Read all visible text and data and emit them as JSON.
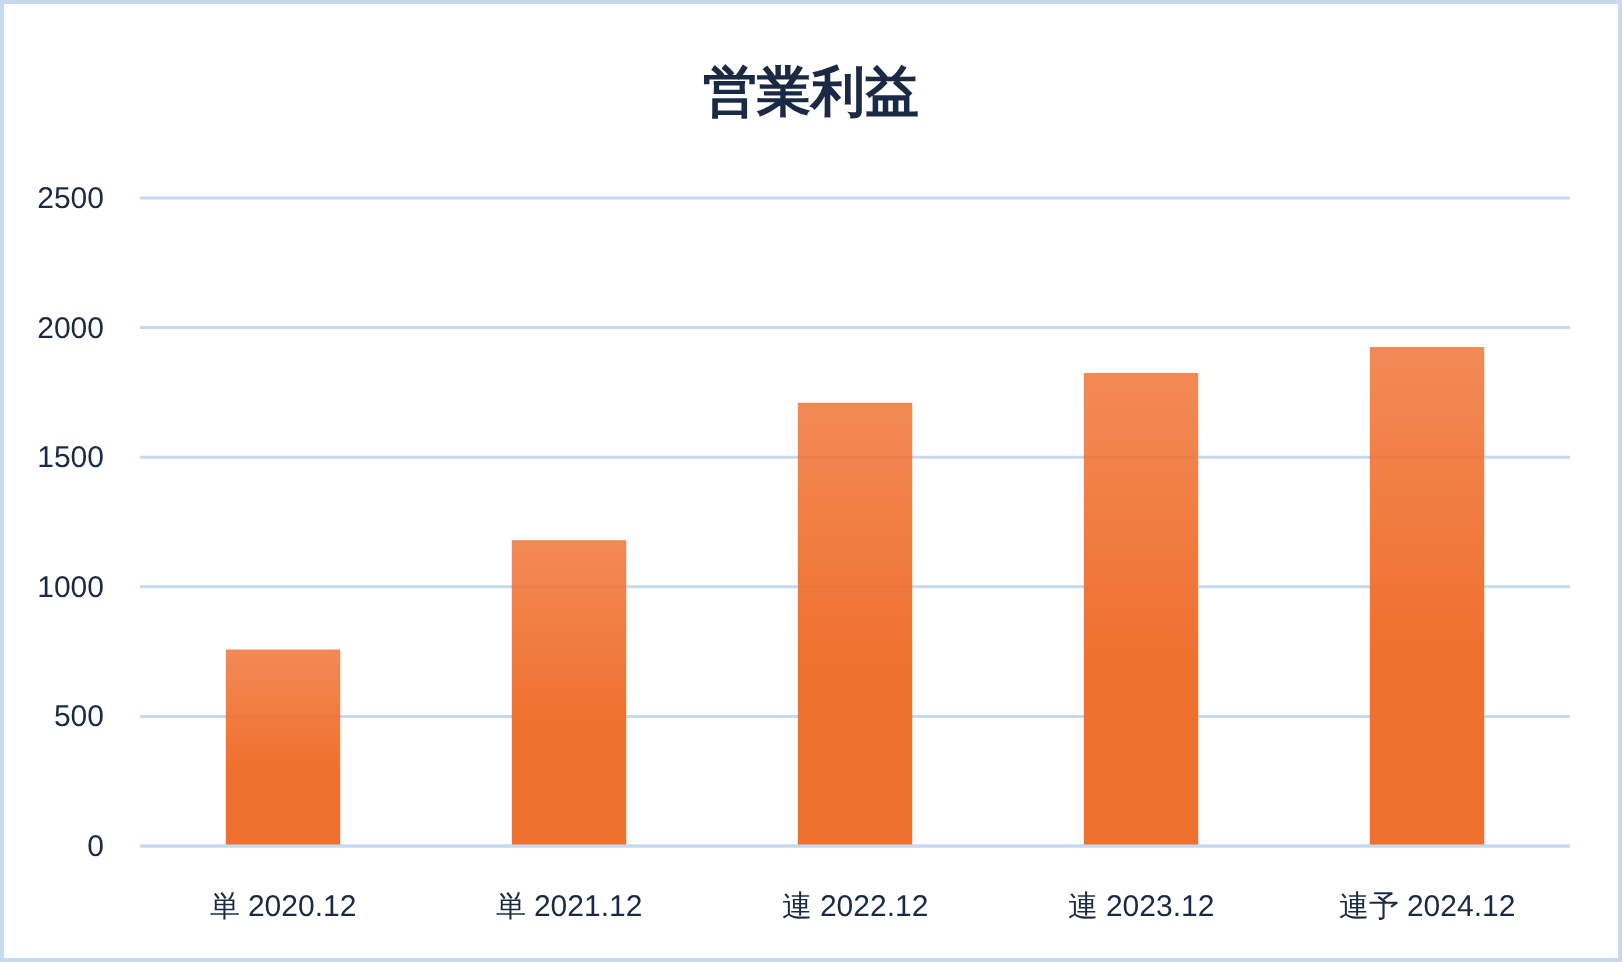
{
  "chart_data": {
    "type": "bar",
    "title": "営業利益",
    "categories": [
      "単 2020.12",
      "単 2021.12",
      "連 2022.12",
      "連 2023.12",
      "連予 2024.12"
    ],
    "values": [
      758,
      1180,
      1710,
      1825,
      1925
    ],
    "color": "#f07030",
    "ylim": [
      0,
      2500
    ],
    "yticks": [
      0,
      500,
      1000,
      1500,
      2000,
      2500
    ],
    "grid": "y"
  }
}
